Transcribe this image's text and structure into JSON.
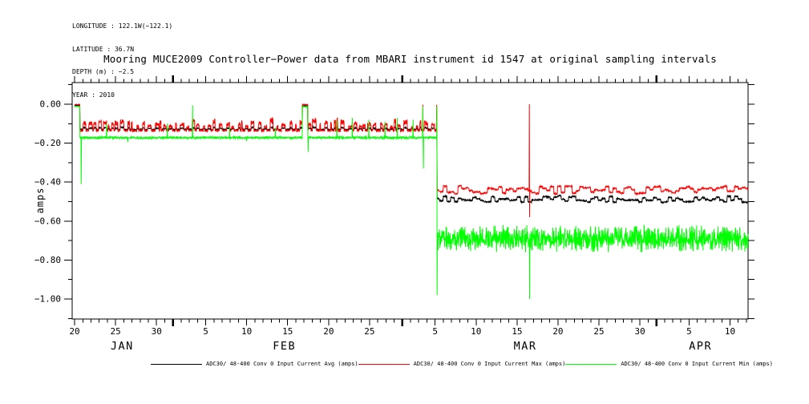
{
  "metadata": {
    "longitude": "LONGITUDE : 122.1W(−122.1)",
    "latitude": "LATITUDE : 36.7N",
    "depth": "DEPTH (m) : −2.5",
    "year": "YEAR : 2010"
  },
  "legend": {
    "items": [
      {
        "label": "ADC30/ 48-400 Conv 0 Input Current  Avg (amps)",
        "color": "#000000"
      },
      {
        "label": "ADC30/ 48-400 Conv 0 Input Current  Max (amps)",
        "color": "#ff0000"
      },
      {
        "label": "ADC30/ 48-400 Conv 0 Input Current  Min (amps)",
        "color": "#00ff00"
      }
    ]
  },
  "chart_data": {
    "type": "line",
    "title": "Mooring MUCE2009 Controller−Power data from MBARI instrument id 1547 at original sampling intervals",
    "ylabel": "amps",
    "seed": 7,
    "grid": false,
    "legend_position": "bottom",
    "xlim_days": [
      -0.3,
      82.2
    ],
    "ylim": [
      -1.103,
      0.111
    ],
    "phase_split_day": 44.24,
    "data_end_day": 82.2,
    "y_ticks": [
      {
        "value": 0.0,
        "label": "0.00"
      },
      {
        "value": -0.2,
        "label": "−0.20"
      },
      {
        "value": -0.4,
        "label": "−0.40"
      },
      {
        "value": -0.6,
        "label": "−0.60"
      },
      {
        "value": -0.8,
        "label": "−0.80"
      },
      {
        "value": -1.0,
        "label": "−1.00"
      }
    ],
    "y_minor_values": [
      0.1,
      -0.1,
      -0.3,
      -0.5,
      -0.7,
      -0.9,
      -1.1
    ],
    "x_major_ticks": [
      {
        "day": 0,
        "label": "20"
      },
      {
        "day": 5,
        "label": "25"
      },
      {
        "day": 10,
        "label": "30"
      },
      {
        "day": 16,
        "label": "5"
      },
      {
        "day": 21,
        "label": "10"
      },
      {
        "day": 26,
        "label": "15"
      },
      {
        "day": 31,
        "label": "20"
      },
      {
        "day": 36,
        "label": "25"
      },
      {
        "day": 44,
        "label": "5"
      },
      {
        "day": 49,
        "label": "10"
      },
      {
        "day": 54,
        "label": "15"
      },
      {
        "day": 59,
        "label": "20"
      },
      {
        "day": 64,
        "label": "25"
      },
      {
        "day": 69,
        "label": "30"
      },
      {
        "day": 75,
        "label": "5"
      },
      {
        "day": 80,
        "label": "10"
      }
    ],
    "x_month_start_days": [
      12,
      40,
      71
    ],
    "x_month_labels": [
      {
        "day": 5.8,
        "label": "JAN"
      },
      {
        "day": 25.6,
        "label": "FEB"
      },
      {
        "day": 55.0,
        "label": "MAR"
      },
      {
        "day": 76.4,
        "label": "APR"
      }
    ],
    "series": [
      {
        "name": "ADC30/ 48-400 Conv 0 Input Current  Avg (amps)",
        "color": "#000000",
        "role": "avg",
        "p1": {
          "base": -0.13,
          "burst": 0.014,
          "jitter": 0.006
        },
        "p2": {
          "base": -0.487,
          "osc": 0.017,
          "jitter": 0.008
        },
        "pulses": [
          {
            "t0": 0,
            "t1": 0.65,
            "level": -0.006
          },
          {
            "t0": 27.8,
            "t1": 28.45,
            "level": -0.008
          }
        ],
        "spikes": []
      },
      {
        "name": "ADC30/ 48-400 Conv 0 Input Current  Max (amps)",
        "color": "#ff0000",
        "role": "max",
        "p1": {
          "base": -0.136,
          "burst": 0.068,
          "jitter": 0.008
        },
        "p2": {
          "base": -0.44,
          "osc": 0.02,
          "jitter": 0.008
        },
        "pulses": [
          {
            "t0": 0,
            "t1": 0.65,
            "level": -0.002
          },
          {
            "t0": 27.8,
            "t1": 28.45,
            "level": -0.002
          }
        ],
        "spikes": [
          {
            "d": 42.51,
            "v": -0.002
          },
          {
            "d": 44.2,
            "v": -0.003
          },
          {
            "d": 55.5,
            "v": 0.0
          },
          {
            "d": 55.53,
            "v": -0.58
          }
        ]
      },
      {
        "name": "ADC30/ 48-400 Conv 0 Input Current  Min (amps)",
        "color": "#00ff00",
        "role": "min",
        "p1": {
          "base": -0.167,
          "jitter": 0.005,
          "bias": -0.01
        },
        "p2": {
          "base": -0.69,
          "noise": 0.045,
          "noise2": 0.028
        },
        "pulses": [
          {
            "t0": 0,
            "t1": 0.65,
            "level": -0.012
          },
          {
            "t0": 27.8,
            "t1": 28.45,
            "level": -0.014
          }
        ],
        "spikes": [
          {
            "d": 0.8,
            "v": -0.41
          },
          {
            "d": 3.9,
            "v": -0.1
          },
          {
            "d": 6.5,
            "v": -0.195
          },
          {
            "d": 11.3,
            "v": -0.1
          },
          {
            "d": 14.4,
            "v": -0.006
          },
          {
            "d": 18.9,
            "v": -0.12
          },
          {
            "d": 21.0,
            "v": -0.19
          },
          {
            "d": 24.5,
            "v": -0.12
          },
          {
            "d": 28.5,
            "v": -0.245
          },
          {
            "d": 32.0,
            "v": -0.08
          },
          {
            "d": 33.9,
            "v": -0.07
          },
          {
            "d": 35.9,
            "v": -0.08
          },
          {
            "d": 37.9,
            "v": -0.09
          },
          {
            "d": 39.4,
            "v": -0.07
          },
          {
            "d": 41.3,
            "v": -0.08
          },
          {
            "d": 42.5,
            "v": -0.012
          },
          {
            "d": 42.56,
            "v": -0.33
          },
          {
            "d": 44.22,
            "v": -0.012
          },
          {
            "d": 44.26,
            "v": -0.98
          },
          {
            "d": 55.515,
            "v": -1.0
          }
        ]
      }
    ]
  }
}
